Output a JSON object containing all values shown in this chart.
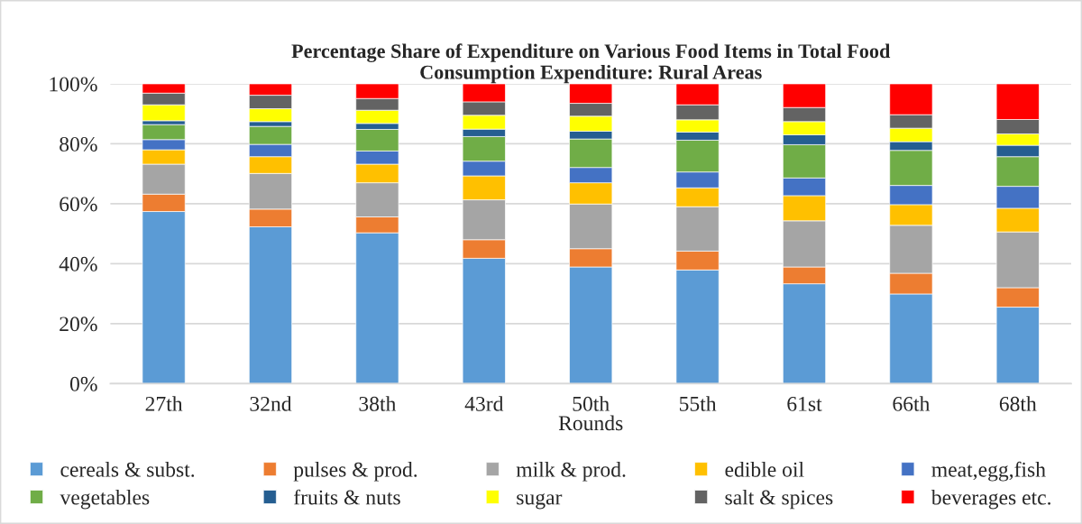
{
  "chart_data": {
    "type": "bar",
    "stacked": true,
    "title": "Percentage Share of Expenditure on Various Food Items in Total Food\nConsumption Expenditure: Rural Areas",
    "xlabel": "Rounds",
    "categories": [
      "27th",
      "32nd",
      "38th",
      "43rd",
      "50th",
      "55th",
      "61st",
      "66th",
      "68th"
    ],
    "series": [
      {
        "name": "cereals & subst.",
        "color": "#5b9bd5",
        "values": [
          57.4,
          52.3,
          50.3,
          41.8,
          38.9,
          37.9,
          33.3,
          29.9,
          25.5
        ]
      },
      {
        "name": "pulses & prod.",
        "color": "#ed7d31",
        "values": [
          5.8,
          5.9,
          5.3,
          6.2,
          6.1,
          6.3,
          5.6,
          6.9,
          6.5
        ]
      },
      {
        "name": "milk & prod.",
        "color": "#a5a5a5",
        "values": [
          10.0,
          11.9,
          11.4,
          13.3,
          14.9,
          14.8,
          15.4,
          16.0,
          18.6
        ]
      },
      {
        "name": "edible oil",
        "color": "#ffc000",
        "values": [
          4.8,
          5.6,
          6.2,
          8.0,
          7.1,
          6.3,
          8.4,
          6.9,
          7.9
        ]
      },
      {
        "name": "meat,egg,fish",
        "color": "#4472c4",
        "values": [
          3.4,
          4.1,
          4.4,
          4.9,
          5.1,
          5.3,
          5.9,
          6.4,
          7.3
        ]
      },
      {
        "name": "vegetables",
        "color": "#70ad47",
        "values": [
          5.0,
          6.0,
          7.2,
          8.2,
          9.5,
          10.6,
          11.1,
          11.7,
          9.9
        ]
      },
      {
        "name": "fruits & nuts",
        "color": "#255e91",
        "values": [
          1.3,
          1.6,
          2.0,
          2.5,
          2.6,
          2.7,
          3.3,
          2.9,
          3.8
        ]
      },
      {
        "name": "sugar",
        "color": "#ffff00",
        "values": [
          5.3,
          4.3,
          4.4,
          4.6,
          5.0,
          4.1,
          4.4,
          4.5,
          3.8
        ]
      },
      {
        "name": "salt & spices",
        "color": "#636363",
        "values": [
          3.9,
          4.5,
          3.9,
          4.5,
          4.3,
          5.0,
          4.7,
          4.5,
          4.8
        ]
      },
      {
        "name": "beverages etc.",
        "color": "#ff0000",
        "values": [
          3.1,
          3.8,
          4.9,
          6.0,
          6.5,
          7.0,
          7.9,
          10.3,
          11.9
        ]
      }
    ],
    "ylim": [
      0,
      100
    ],
    "yticks": [
      {
        "value": 0,
        "label": "0%"
      },
      {
        "value": 20,
        "label": "20%"
      },
      {
        "value": 40,
        "label": "40%"
      },
      {
        "value": 60,
        "label": "60%"
      },
      {
        "value": 80,
        "label": "80%"
      },
      {
        "value": 100,
        "label": "100%"
      }
    ],
    "grid": "y",
    "legend": "bottom"
  }
}
